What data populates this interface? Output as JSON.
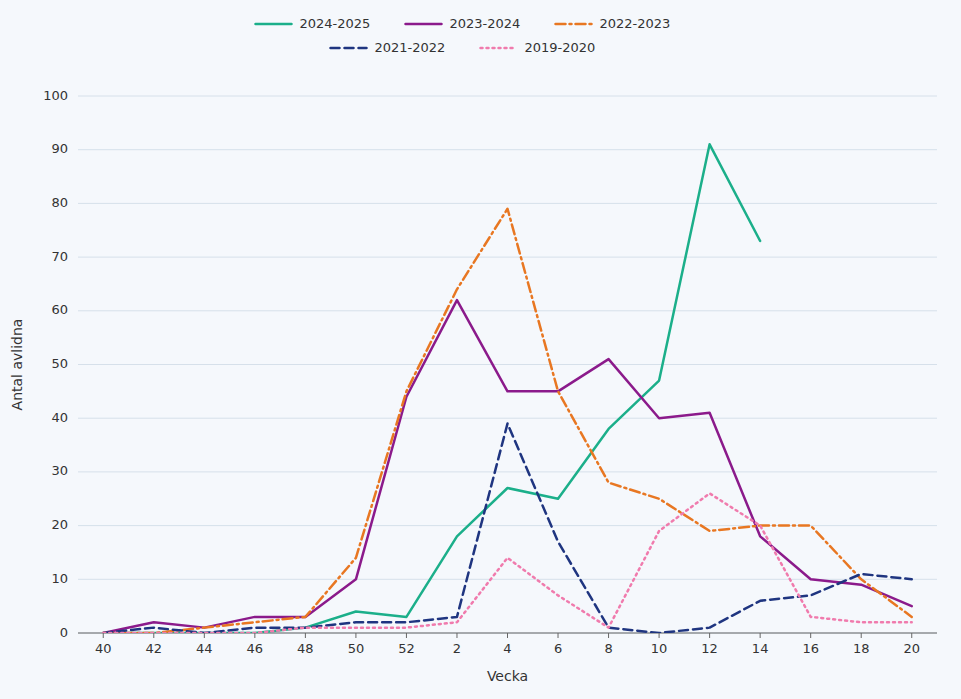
{
  "chart_data": {
    "type": "line",
    "xlabel": "Vecka",
    "ylabel": "Antal avlidna",
    "categories": [
      "40",
      "42",
      "44",
      "46",
      "48",
      "50",
      "52",
      "2",
      "4",
      "6",
      "8",
      "10",
      "12",
      "14",
      "16",
      "18",
      "20"
    ],
    "ylim": [
      0,
      100
    ],
    "yticks": [
      0,
      10,
      20,
      30,
      40,
      50,
      60,
      70,
      80,
      90,
      100
    ],
    "grid": true,
    "legend": "top",
    "series": [
      {
        "name": "2024-2025",
        "color": "#1BAF8A",
        "line_style": "solid",
        "values": [
          0,
          0,
          0,
          0,
          1,
          4,
          3,
          18,
          27,
          25,
          38,
          47,
          91,
          73,
          null,
          null,
          null
        ]
      },
      {
        "name": "2023-2024",
        "color": "#8B1A8B",
        "line_style": "solid",
        "values": [
          0,
          2,
          1,
          3,
          3,
          10,
          44,
          62,
          45,
          45,
          51,
          40,
          41,
          18,
          10,
          9,
          5
        ]
      },
      {
        "name": "2022-2023",
        "color": "#E87722",
        "line_style": "dashdot",
        "values": [
          0,
          0,
          1,
          2,
          3,
          14,
          45,
          64,
          79,
          45,
          28,
          25,
          19,
          20,
          20,
          10,
          3
        ]
      },
      {
        "name": "2021-2022",
        "color": "#1F3580",
        "line_style": "dashed",
        "values": [
          0,
          1,
          0,
          1,
          1,
          2,
          2,
          3,
          39,
          17,
          1,
          0,
          1,
          6,
          7,
          11,
          10
        ]
      },
      {
        "name": "2019-2020",
        "color": "#F07BAD",
        "line_style": "dotted",
        "values": [
          0,
          0,
          0,
          0,
          1,
          1,
          1,
          2,
          14,
          7,
          1,
          19,
          26,
          20,
          3,
          2,
          2
        ]
      }
    ]
  }
}
